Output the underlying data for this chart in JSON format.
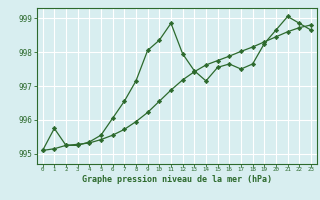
{
  "line1_x": [
    0,
    1,
    2,
    3,
    4,
    5,
    6,
    7,
    8,
    9,
    10,
    11,
    12,
    13,
    14,
    15,
    16,
    17,
    18,
    19,
    20,
    21,
    22,
    23
  ],
  "line1_y": [
    995.1,
    995.75,
    995.25,
    995.25,
    995.35,
    995.55,
    996.05,
    996.55,
    997.15,
    998.05,
    998.35,
    998.85,
    997.95,
    997.45,
    997.15,
    997.55,
    997.65,
    997.5,
    997.65,
    998.25,
    998.65,
    999.05,
    998.85,
    998.65
  ],
  "line2_x": [
    0,
    1,
    2,
    3,
    4,
    5,
    6,
    7,
    8,
    9,
    10,
    11,
    12,
    13,
    14,
    15,
    16,
    17,
    18,
    19,
    20,
    21,
    22,
    23
  ],
  "line2_y": [
    995.1,
    995.15,
    995.25,
    995.28,
    995.32,
    995.42,
    995.55,
    995.72,
    995.95,
    996.22,
    996.55,
    996.88,
    997.18,
    997.42,
    997.62,
    997.75,
    997.88,
    998.02,
    998.15,
    998.3,
    998.45,
    998.6,
    998.72,
    998.8
  ],
  "line_color": "#2d6a2d",
  "bg_color": "#d8eef0",
  "grid_color": "#ffffff",
  "xlabel": "Graphe pression niveau de la mer (hPa)",
  "xlim_min": -0.5,
  "xlim_max": 23.5,
  "ylim_min": 994.7,
  "ylim_max": 999.3,
  "yticks": [
    995,
    996,
    997,
    998,
    999
  ],
  "xticks": [
    0,
    1,
    2,
    3,
    4,
    5,
    6,
    7,
    8,
    9,
    10,
    11,
    12,
    13,
    14,
    15,
    16,
    17,
    18,
    19,
    20,
    21,
    22,
    23
  ],
  "marker": "D",
  "markersize": 2.2,
  "linewidth": 0.9
}
